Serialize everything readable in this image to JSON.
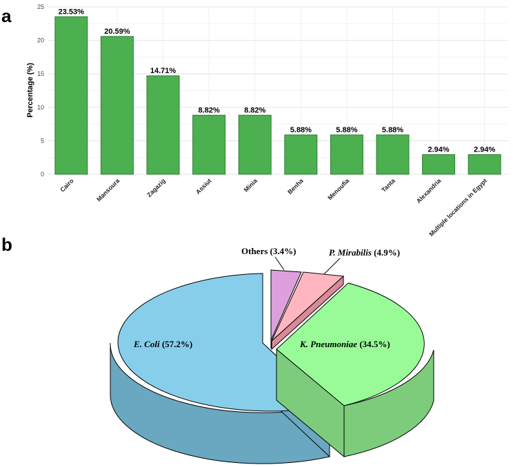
{
  "panel_a_label": "a",
  "panel_b_label": "b",
  "chart_data": [
    {
      "type": "bar",
      "title": "",
      "xlabel": "",
      "ylabel": "Percentage (%)",
      "ylim": [
        0,
        25
      ],
      "yticks": [
        0,
        5,
        10,
        15,
        20,
        25
      ],
      "grid": true,
      "categories": [
        "Cairo",
        "Mansoura",
        "Zagazig",
        "Assiut",
        "Minia",
        "Benha",
        "Menoufia",
        "Tanta",
        "Alexandria",
        "Multiple locations in Egypt"
      ],
      "values": [
        23.53,
        20.59,
        14.71,
        8.82,
        8.82,
        5.88,
        5.88,
        5.88,
        2.94,
        2.94
      ],
      "labels": [
        "23.53%",
        "20.59%",
        "14.71%",
        "8.82%",
        "8.82%",
        "5.88%",
        "5.88%",
        "5.88%",
        "2.94%",
        "2.94%"
      ],
      "color": "#4caf50"
    },
    {
      "type": "pie",
      "style": "3d-exploded",
      "slices": [
        {
          "name": "E. Coli",
          "value": 57.2,
          "label": "(57.2%)",
          "color": "#87ceeb"
        },
        {
          "name": "K. Pneumoniae",
          "value": 34.5,
          "label": "(34.5%)",
          "color": "#98fb98"
        },
        {
          "name": "P. Mirabilis",
          "value": 4.9,
          "label": "(4.9%)",
          "color": "#ffb6c1"
        },
        {
          "name": "Others",
          "value": 3.4,
          "label": "(3.4%)",
          "color": "#dda0dd"
        }
      ]
    }
  ]
}
